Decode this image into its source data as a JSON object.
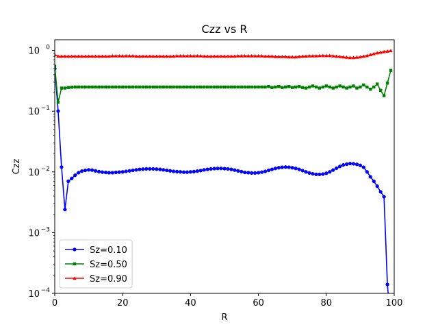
{
  "chart_data": {
    "type": "line",
    "title": "Czz vs R",
    "xlabel": "R",
    "ylabel": "Czz",
    "xlim": [
      0,
      100
    ],
    "ylim": [
      0.0001,
      1.5
    ],
    "yscale": "log",
    "x_ticks": [
      0,
      20,
      40,
      60,
      80,
      100
    ],
    "x_tick_labels": [
      "0",
      "20",
      "40",
      "60",
      "80",
      "100"
    ],
    "y_ticks": [
      0.0001,
      0.001,
      0.01,
      0.1,
      1
    ],
    "y_tick_labels": [
      {
        "base": "10",
        "exp": "−4"
      },
      {
        "base": "10",
        "exp": "−3"
      },
      {
        "base": "10",
        "exp": "−2"
      },
      {
        "base": "10",
        "exp": "−1"
      },
      {
        "base": "10",
        "exp": "0"
      }
    ],
    "grid": false,
    "legend_position": "lower-left",
    "x": [
      0,
      1,
      2,
      3,
      4,
      5,
      6,
      7,
      8,
      9,
      10,
      11,
      12,
      13,
      14,
      15,
      16,
      17,
      18,
      19,
      20,
      21,
      22,
      23,
      24,
      25,
      26,
      27,
      28,
      29,
      30,
      31,
      32,
      33,
      34,
      35,
      36,
      37,
      38,
      39,
      40,
      41,
      42,
      43,
      44,
      45,
      46,
      47,
      48,
      49,
      50,
      51,
      52,
      53,
      54,
      55,
      56,
      57,
      58,
      59,
      60,
      61,
      62,
      63,
      64,
      65,
      66,
      67,
      68,
      69,
      70,
      71,
      72,
      73,
      74,
      75,
      76,
      77,
      78,
      79,
      80,
      81,
      82,
      83,
      84,
      85,
      86,
      87,
      88,
      89,
      90,
      91,
      92,
      93,
      94,
      95,
      96,
      97,
      98,
      99
    ],
    "series": [
      {
        "name": "Sz=0.10",
        "color": "#0000ff",
        "marker": "circle",
        "values": [
          0.5,
          0.1,
          0.012,
          0.0024,
          0.007,
          0.0078,
          0.0088,
          0.0097,
          0.0103,
          0.0106,
          0.0108,
          0.0107,
          0.0104,
          0.0101,
          0.0099,
          0.0098,
          0.0097,
          0.0097,
          0.0098,
          0.0099,
          0.01,
          0.0102,
          0.0104,
          0.0106,
          0.0108,
          0.011,
          0.0111,
          0.0112,
          0.0112,
          0.0112,
          0.0111,
          0.011,
          0.0108,
          0.0106,
          0.0104,
          0.0102,
          0.0101,
          0.01,
          0.0099,
          0.0099,
          0.01,
          0.0101,
          0.0103,
          0.0105,
          0.0108,
          0.011,
          0.0112,
          0.0113,
          0.0114,
          0.0114,
          0.0113,
          0.0112,
          0.011,
          0.0107,
          0.0104,
          0.0101,
          0.0098,
          0.0097,
          0.0096,
          0.0096,
          0.0097,
          0.0099,
          0.0102,
          0.0106,
          0.011,
          0.0114,
          0.0117,
          0.0119,
          0.012,
          0.0119,
          0.0117,
          0.0114,
          0.011,
          0.0105,
          0.01,
          0.0096,
          0.0093,
          0.0091,
          0.0091,
          0.0092,
          0.0095,
          0.01,
          0.0107,
          0.0115,
          0.0123,
          0.013,
          0.0134,
          0.0137,
          0.0136,
          0.0133,
          0.0128,
          0.0119,
          0.01,
          0.0083,
          0.007,
          0.0058,
          0.0047,
          0.0039,
          0.00014,
          3e-05
        ]
      },
      {
        "name": "Sz=0.50",
        "color": "#008000",
        "marker": "square",
        "values": [
          0.55,
          0.14,
          0.24,
          0.24,
          0.245,
          0.248,
          0.25,
          0.25,
          0.25,
          0.25,
          0.25,
          0.25,
          0.25,
          0.25,
          0.25,
          0.25,
          0.25,
          0.25,
          0.25,
          0.25,
          0.25,
          0.25,
          0.25,
          0.25,
          0.25,
          0.25,
          0.25,
          0.25,
          0.25,
          0.25,
          0.25,
          0.25,
          0.25,
          0.25,
          0.25,
          0.25,
          0.25,
          0.25,
          0.25,
          0.25,
          0.25,
          0.25,
          0.25,
          0.25,
          0.25,
          0.25,
          0.25,
          0.25,
          0.25,
          0.25,
          0.25,
          0.25,
          0.25,
          0.25,
          0.25,
          0.25,
          0.25,
          0.25,
          0.25,
          0.25,
          0.25,
          0.25,
          0.25,
          0.255,
          0.245,
          0.25,
          0.255,
          0.245,
          0.25,
          0.255,
          0.245,
          0.25,
          0.255,
          0.245,
          0.24,
          0.25,
          0.26,
          0.25,
          0.24,
          0.25,
          0.26,
          0.25,
          0.24,
          0.25,
          0.26,
          0.25,
          0.24,
          0.25,
          0.26,
          0.24,
          0.25,
          0.27,
          0.25,
          0.23,
          0.25,
          0.28,
          0.22,
          0.18,
          0.29,
          0.47
        ]
      },
      {
        "name": "Sz=0.90",
        "color": "#ff0000",
        "marker": "triangle",
        "values": [
          0.85,
          0.8,
          0.8,
          0.8,
          0.8,
          0.8,
          0.8,
          0.8,
          0.8,
          0.8,
          0.8,
          0.8,
          0.8,
          0.8,
          0.8,
          0.8,
          0.8,
          0.81,
          0.81,
          0.81,
          0.81,
          0.81,
          0.81,
          0.81,
          0.8,
          0.8,
          0.8,
          0.8,
          0.8,
          0.8,
          0.8,
          0.8,
          0.8,
          0.8,
          0.8,
          0.8,
          0.81,
          0.81,
          0.81,
          0.81,
          0.81,
          0.81,
          0.81,
          0.81,
          0.8,
          0.8,
          0.8,
          0.8,
          0.8,
          0.8,
          0.8,
          0.8,
          0.8,
          0.8,
          0.81,
          0.81,
          0.81,
          0.81,
          0.81,
          0.81,
          0.81,
          0.81,
          0.8,
          0.8,
          0.8,
          0.79,
          0.79,
          0.79,
          0.79,
          0.78,
          0.78,
          0.78,
          0.79,
          0.8,
          0.8,
          0.81,
          0.81,
          0.81,
          0.82,
          0.82,
          0.82,
          0.82,
          0.81,
          0.8,
          0.79,
          0.78,
          0.77,
          0.76,
          0.76,
          0.77,
          0.78,
          0.8,
          0.82,
          0.85,
          0.88,
          0.91,
          0.93,
          0.95,
          0.97,
          0.99
        ]
      }
    ]
  }
}
